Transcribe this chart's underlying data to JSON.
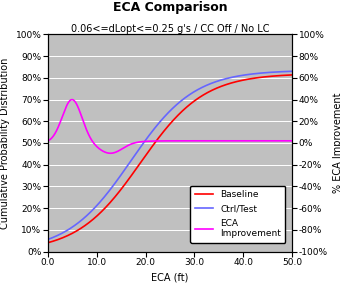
{
  "title": "ECA Comparison",
  "subtitle": "0.06<=dLopt<=0.25 g's / CC Off / No LC",
  "xlabel": "ECA (ft)",
  "ylabel_left": "Cumulative Probability Distribution",
  "ylabel_right": "% ECA Improvement",
  "xlim": [
    0,
    50
  ],
  "ylim_left": [
    0,
    1.0
  ],
  "ylim_right": [
    -1.0,
    1.0
  ],
  "xticks": [
    0.0,
    10.0,
    20.0,
    30.0,
    40.0,
    50.0
  ],
  "yticks_left": [
    0,
    0.1,
    0.2,
    0.3,
    0.4,
    0.5,
    0.6,
    0.7,
    0.8,
    0.9,
    1.0
  ],
  "yticks_right": [
    -1.0,
    -0.8,
    -0.6,
    -0.4,
    -0.2,
    0.0,
    0.2,
    0.4,
    0.6,
    0.8,
    1.0
  ],
  "background_color": "#c0c0c0",
  "baseline_color": "#ff0000",
  "ctrl_test_color": "#6666ff",
  "eca_improvement_color": "#ff00ff",
  "legend_labels": [
    "Baseline",
    "Ctrl/Test",
    "ECA\nImprovement"
  ],
  "title_fontsize": 9,
  "subtitle_fontsize": 7,
  "axis_label_fontsize": 7,
  "tick_fontsize": 6.5,
  "legend_fontsize": 6.5
}
